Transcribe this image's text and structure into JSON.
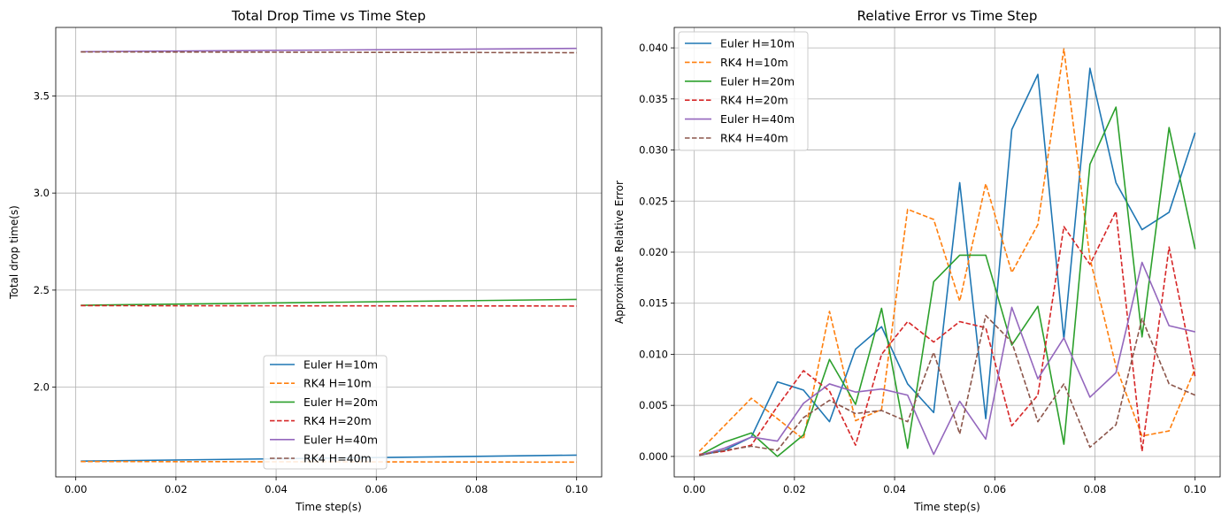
{
  "chart_data": [
    {
      "type": "line",
      "title": "Total Drop Time vs Time Step",
      "xlabel": "Time step(s)",
      "ylabel": "Total drop time(s)",
      "xlim": [
        -0.004,
        0.105
      ],
      "ylim": [
        1.538,
        3.853
      ],
      "xticks": [
        0.0,
        0.02,
        0.04,
        0.06,
        0.08,
        0.1
      ],
      "xtick_labels": [
        "0.00",
        "0.02",
        "0.04",
        "0.06",
        "0.08",
        "0.10"
      ],
      "yticks": [
        2.0,
        2.5,
        3.0,
        3.5
      ],
      "ytick_labels": [
        "2.0",
        "2.5",
        "3.0",
        "3.5"
      ],
      "grid": true,
      "legend_position": "lower-center",
      "series": [
        {
          "name": "Euler H=10m",
          "color": "#1f77b4",
          "dash": "solid",
          "x": [
            0.001,
            0.1
          ],
          "y": [
            1.619,
            1.65
          ]
        },
        {
          "name": "RK4 H=10m",
          "color": "#ff7f0e",
          "dash": "dashed",
          "x": [
            0.001,
            0.1
          ],
          "y": [
            1.617,
            1.614
          ]
        },
        {
          "name": "Euler H=20m",
          "color": "#2ca02c",
          "dash": "solid",
          "x": [
            0.001,
            0.1
          ],
          "y": [
            2.422,
            2.452
          ]
        },
        {
          "name": "RK4 H=20m",
          "color": "#d62728",
          "dash": "dashed",
          "x": [
            0.001,
            0.1
          ],
          "y": [
            2.42,
            2.418
          ]
        },
        {
          "name": "Euler H=40m",
          "color": "#9467bd",
          "dash": "solid",
          "x": [
            0.001,
            0.1
          ],
          "y": [
            3.728,
            3.745
          ]
        },
        {
          "name": "RK4 H=40m",
          "color": "#8c564b",
          "dash": "dashed",
          "x": [
            0.001,
            0.1
          ],
          "y": [
            3.727,
            3.723
          ]
        }
      ]
    },
    {
      "type": "line",
      "title": "Relative Error vs Time Step",
      "xlabel": "Time step(s)",
      "ylabel": "Approximate Relative Error",
      "xlim": [
        -0.004,
        0.105
      ],
      "ylim": [
        -0.002,
        0.042
      ],
      "xticks": [
        0.0,
        0.02,
        0.04,
        0.06,
        0.08,
        0.1
      ],
      "xtick_labels": [
        "0.00",
        "0.02",
        "0.04",
        "0.06",
        "0.08",
        "0.10"
      ],
      "yticks": [
        0.0,
        0.005,
        0.01,
        0.015,
        0.02,
        0.025,
        0.03,
        0.035,
        0.04
      ],
      "ytick_labels": [
        "0.000",
        "0.005",
        "0.010",
        "0.015",
        "0.020",
        "0.025",
        "0.030",
        "0.035",
        "0.040"
      ],
      "grid": true,
      "legend_position": "upper-left",
      "x": [
        0.001,
        0.006,
        0.0114,
        0.0166,
        0.0218,
        0.027,
        0.0322,
        0.0374,
        0.0426,
        0.0478,
        0.053,
        0.0582,
        0.0634,
        0.0686,
        0.0738,
        0.079,
        0.0842,
        0.0894,
        0.0948,
        0.1
      ],
      "series": [
        {
          "name": "Euler H=10m",
          "color": "#1f77b4",
          "dash": "solid",
          "values": [
            0.0001,
            0.0006,
            0.0019,
            0.0073,
            0.0065,
            0.0034,
            0.0105,
            0.0127,
            0.0071,
            0.0043,
            0.0268,
            0.0037,
            0.032,
            0.0374,
            0.0115,
            0.038,
            0.0268,
            0.0222,
            0.0239,
            0.0317
          ]
        },
        {
          "name": "RK4 H=10m",
          "color": "#ff7f0e",
          "dash": "dashed",
          "values": [
            0.0005,
            0.003,
            0.0057,
            0.0037,
            0.0017,
            0.0142,
            0.0035,
            0.0046,
            0.0242,
            0.0232,
            0.0152,
            0.0267,
            0.018,
            0.0227,
            0.0399,
            0.0194,
            0.0088,
            0.002,
            0.0025,
            0.0086
          ]
        },
        {
          "name": "Euler H=20m",
          "color": "#2ca02c",
          "dash": "solid",
          "values": [
            0.0001,
            0.0014,
            0.0023,
            0.0,
            0.0021,
            0.0095,
            0.0051,
            0.0145,
            0.0008,
            0.0171,
            0.0197,
            0.0197,
            0.0109,
            0.0147,
            0.0012,
            0.0286,
            0.0342,
            0.0117,
            0.0322,
            0.0203
          ]
        },
        {
          "name": "RK4 H=20m",
          "color": "#d62728",
          "dash": "dashed",
          "values": [
            0.0002,
            0.0005,
            0.0011,
            0.0049,
            0.0084,
            0.0064,
            0.0011,
            0.01,
            0.0132,
            0.0112,
            0.0132,
            0.0126,
            0.003,
            0.006,
            0.0225,
            0.0188,
            0.024,
            0.0005,
            0.0205,
            0.0078
          ]
        },
        {
          "name": "Euler H=40m",
          "color": "#9467bd",
          "dash": "solid",
          "values": [
            0.0001,
            0.0008,
            0.0019,
            0.0015,
            0.0052,
            0.0071,
            0.0063,
            0.0066,
            0.006,
            0.0002,
            0.0054,
            0.0017,
            0.0146,
            0.0076,
            0.0116,
            0.0058,
            0.0082,
            0.019,
            0.0128,
            0.0122
          ]
        },
        {
          "name": "RK4 H=40m",
          "color": "#8c564b",
          "dash": "dashed",
          "values": [
            0.0001,
            0.0006,
            0.001,
            0.0006,
            0.0038,
            0.0055,
            0.0042,
            0.0045,
            0.0034,
            0.0102,
            0.0022,
            0.0138,
            0.0112,
            0.0034,
            0.0071,
            0.0009,
            0.0031,
            0.0135,
            0.0071,
            0.006
          ]
        }
      ]
    }
  ]
}
